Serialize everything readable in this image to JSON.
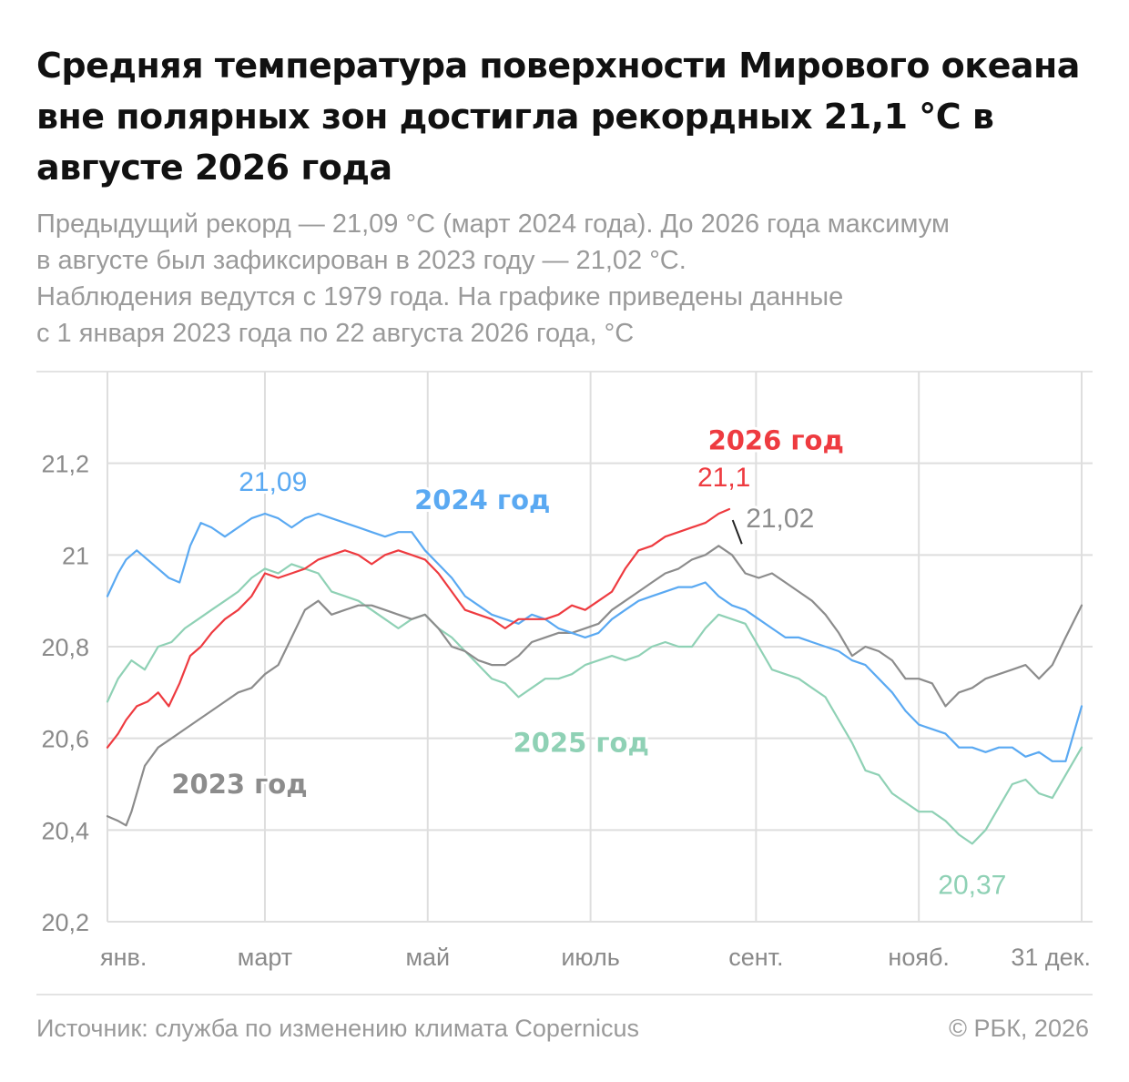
{
  "title": "Средняя температура поверхности Мирового океана вне полярных зон достигла рекордных 21,1 °C в августе 2026 года",
  "subtitle_lines": [
    "Предыдущий рекорд — 21,09 °C (март 2024 года). До 2026 года максимум",
    "в августе был зафиксирован в 2023 году — 21,02 °C.",
    "Наблюдения ведутся с 1979 года. На графике приведены данные",
    "с 1 января 2023 года по 22 августа 2026 года, °C"
  ],
  "footer": {
    "source": "Источник: служба по изменению климата Copernicus",
    "copyright": "© РБК, 2026"
  },
  "chart_data": {
    "type": "line",
    "ylim": [
      20.2,
      21.4
    ],
    "y_ticks": [
      20.2,
      20.4,
      20.6,
      20.8,
      21,
      21.2
    ],
    "y_tick_labels": [
      "20,2",
      "20,4",
      "20,6",
      "20,8",
      "21",
      "21,2"
    ],
    "x_range_days": [
      1,
      366
    ],
    "x_month_lines": [
      60,
      121,
      182,
      244,
      305,
      366
    ],
    "x_ticks": [
      {
        "day": 1,
        "label": "янв."
      },
      {
        "day": 60,
        "label": "март"
      },
      {
        "day": 121,
        "label": "май"
      },
      {
        "day": 182,
        "label": "июль"
      },
      {
        "day": 244,
        "label": "сент."
      },
      {
        "day": 305,
        "label": "нояб."
      },
      {
        "day": 366,
        "label": "31 дек."
      }
    ],
    "colors": {
      "2023": "#8c8c8c",
      "2024": "#5aa9f2",
      "2025": "#8fd1b5",
      "2026": "#ee3b40",
      "grid": "#dedede",
      "axis_text": "#8a8a8a"
    },
    "series": [
      {
        "name": "2023 год",
        "key": "2023",
        "x": [
          1,
          5,
          8,
          10,
          15,
          20,
          25,
          30,
          35,
          40,
          45,
          50,
          55,
          60,
          65,
          70,
          75,
          80,
          85,
          90,
          95,
          100,
          105,
          110,
          115,
          120,
          125,
          130,
          135,
          140,
          145,
          150,
          155,
          160,
          165,
          170,
          175,
          180,
          185,
          190,
          195,
          200,
          205,
          210,
          215,
          220,
          225,
          230,
          235,
          240,
          245,
          250,
          255,
          260,
          265,
          270,
          275,
          280,
          285,
          290,
          295,
          300,
          305,
          310,
          315,
          320,
          325,
          330,
          335,
          340,
          345,
          350,
          355,
          360,
          366
        ],
        "y": [
          20.43,
          20.42,
          20.41,
          20.44,
          20.54,
          20.58,
          20.6,
          20.62,
          20.64,
          20.66,
          20.68,
          20.7,
          20.71,
          20.74,
          20.76,
          20.82,
          20.88,
          20.9,
          20.87,
          20.88,
          20.89,
          20.89,
          20.88,
          20.87,
          20.86,
          20.87,
          20.84,
          20.8,
          20.79,
          20.77,
          20.76,
          20.76,
          20.78,
          20.81,
          20.82,
          20.83,
          20.83,
          20.84,
          20.85,
          20.88,
          20.9,
          20.92,
          20.94,
          20.96,
          20.97,
          20.99,
          21.0,
          21.02,
          21.0,
          20.96,
          20.95,
          20.96,
          20.94,
          20.92,
          20.9,
          20.87,
          20.83,
          20.78,
          20.8,
          20.79,
          20.77,
          20.73,
          20.73,
          20.72,
          20.67,
          20.7,
          20.71,
          20.73,
          20.74,
          20.75,
          20.76,
          20.73,
          20.76,
          20.82,
          20.89
        ]
      },
      {
        "name": "2024 год",
        "key": "2024",
        "x": [
          1,
          5,
          8,
          12,
          16,
          20,
          24,
          28,
          32,
          36,
          40,
          45,
          50,
          55,
          60,
          65,
          70,
          75,
          80,
          85,
          90,
          95,
          100,
          105,
          110,
          115,
          120,
          125,
          130,
          135,
          140,
          145,
          150,
          155,
          160,
          165,
          170,
          175,
          180,
          185,
          190,
          195,
          200,
          205,
          210,
          215,
          220,
          225,
          230,
          235,
          240,
          245,
          250,
          255,
          260,
          265,
          270,
          275,
          280,
          285,
          290,
          295,
          300,
          305,
          310,
          315,
          320,
          325,
          330,
          335,
          340,
          345,
          350,
          355,
          360,
          366
        ],
        "y": [
          20.91,
          20.96,
          20.99,
          21.01,
          20.99,
          20.97,
          20.95,
          20.94,
          21.02,
          21.07,
          21.06,
          21.04,
          21.06,
          21.08,
          21.09,
          21.08,
          21.06,
          21.08,
          21.09,
          21.08,
          21.07,
          21.06,
          21.05,
          21.04,
          21.05,
          21.05,
          21.01,
          20.98,
          20.95,
          20.91,
          20.89,
          20.87,
          20.86,
          20.85,
          20.87,
          20.86,
          20.84,
          20.83,
          20.82,
          20.83,
          20.86,
          20.88,
          20.9,
          20.91,
          20.92,
          20.93,
          20.93,
          20.94,
          20.91,
          20.89,
          20.88,
          20.86,
          20.84,
          20.82,
          20.82,
          20.81,
          20.8,
          20.79,
          20.77,
          20.76,
          20.73,
          20.7,
          20.66,
          20.63,
          20.62,
          20.61,
          20.58,
          20.58,
          20.57,
          20.58,
          20.58,
          20.56,
          20.57,
          20.55,
          20.55,
          20.67
        ]
      },
      {
        "name": "2025 год",
        "key": "2025",
        "x": [
          1,
          5,
          10,
          15,
          20,
          25,
          30,
          35,
          40,
          45,
          50,
          55,
          60,
          65,
          70,
          75,
          80,
          85,
          90,
          95,
          100,
          105,
          110,
          115,
          120,
          125,
          130,
          135,
          140,
          145,
          150,
          155,
          160,
          165,
          170,
          175,
          180,
          185,
          190,
          195,
          200,
          205,
          210,
          215,
          220,
          225,
          230,
          235,
          240,
          245,
          250,
          255,
          260,
          265,
          270,
          275,
          280,
          285,
          290,
          295,
          300,
          305,
          310,
          315,
          320,
          325,
          330,
          335,
          340,
          345,
          350,
          355,
          360,
          366
        ],
        "y": [
          20.68,
          20.73,
          20.77,
          20.75,
          20.8,
          20.81,
          20.84,
          20.86,
          20.88,
          20.9,
          20.92,
          20.95,
          20.97,
          20.96,
          20.98,
          20.97,
          20.96,
          20.92,
          20.91,
          20.9,
          20.88,
          20.86,
          20.84,
          20.86,
          20.87,
          20.84,
          20.82,
          20.79,
          20.76,
          20.73,
          20.72,
          20.69,
          20.71,
          20.73,
          20.73,
          20.74,
          20.76,
          20.77,
          20.78,
          20.77,
          20.78,
          20.8,
          20.81,
          20.8,
          20.8,
          20.84,
          20.87,
          20.86,
          20.85,
          20.8,
          20.75,
          20.74,
          20.73,
          20.71,
          20.69,
          20.64,
          20.59,
          20.53,
          20.52,
          20.48,
          20.46,
          20.44,
          20.44,
          20.42,
          20.39,
          20.37,
          20.4,
          20.45,
          20.5,
          20.51,
          20.48,
          20.47,
          20.52,
          20.58
        ]
      },
      {
        "name": "2026 год",
        "key": "2026",
        "x": [
          1,
          5,
          8,
          12,
          16,
          20,
          24,
          28,
          32,
          36,
          40,
          45,
          50,
          55,
          60,
          65,
          70,
          75,
          80,
          85,
          90,
          95,
          100,
          105,
          110,
          115,
          120,
          125,
          130,
          135,
          140,
          145,
          150,
          155,
          160,
          165,
          170,
          175,
          180,
          185,
          190,
          195,
          200,
          205,
          210,
          215,
          220,
          225,
          230,
          234
        ],
        "y": [
          20.58,
          20.61,
          20.64,
          20.67,
          20.68,
          20.7,
          20.67,
          20.72,
          20.78,
          20.8,
          20.83,
          20.86,
          20.88,
          20.91,
          20.96,
          20.95,
          20.96,
          20.97,
          20.99,
          21.0,
          21.01,
          21.0,
          20.98,
          21.0,
          21.01,
          21.0,
          20.99,
          20.96,
          20.92,
          20.88,
          20.87,
          20.86,
          20.84,
          20.86,
          20.86,
          20.86,
          20.87,
          20.89,
          20.88,
          20.9,
          20.92,
          20.97,
          21.01,
          21.02,
          21.04,
          21.05,
          21.06,
          21.07,
          21.09,
          21.1
        ]
      }
    ],
    "series_labels": [
      {
        "key": "2023",
        "text": "2023 год",
        "x": 25,
        "y": 20.5,
        "anchor": "start",
        "bold": true
      },
      {
        "key": "2024",
        "text": "2024 год",
        "x": 116,
        "y": 21.12,
        "anchor": "start",
        "bold": true
      },
      {
        "key": "2025",
        "text": "2025 год",
        "x": 153,
        "y": 20.59,
        "anchor": "start",
        "bold": true
      },
      {
        "key": "2026",
        "text": "2026 год",
        "x": 226,
        "y": 21.25,
        "anchor": "start",
        "bold": true
      }
    ],
    "value_labels": [
      {
        "key": "2024",
        "text": "21,09",
        "x": 63,
        "y": 21.16,
        "anchor": "middle"
      },
      {
        "key": "2026",
        "text": "21,1",
        "x": 232,
        "y": 21.17,
        "anchor": "middle"
      },
      {
        "key": "2023",
        "text": "21,02",
        "x": 253,
        "y": 21.08,
        "anchor": "middle",
        "leader_to": {
          "x": 238,
          "y": 21.02
        }
      },
      {
        "key": "2025",
        "text": "20,37",
        "x": 325,
        "y": 20.28,
        "anchor": "middle"
      }
    ]
  }
}
